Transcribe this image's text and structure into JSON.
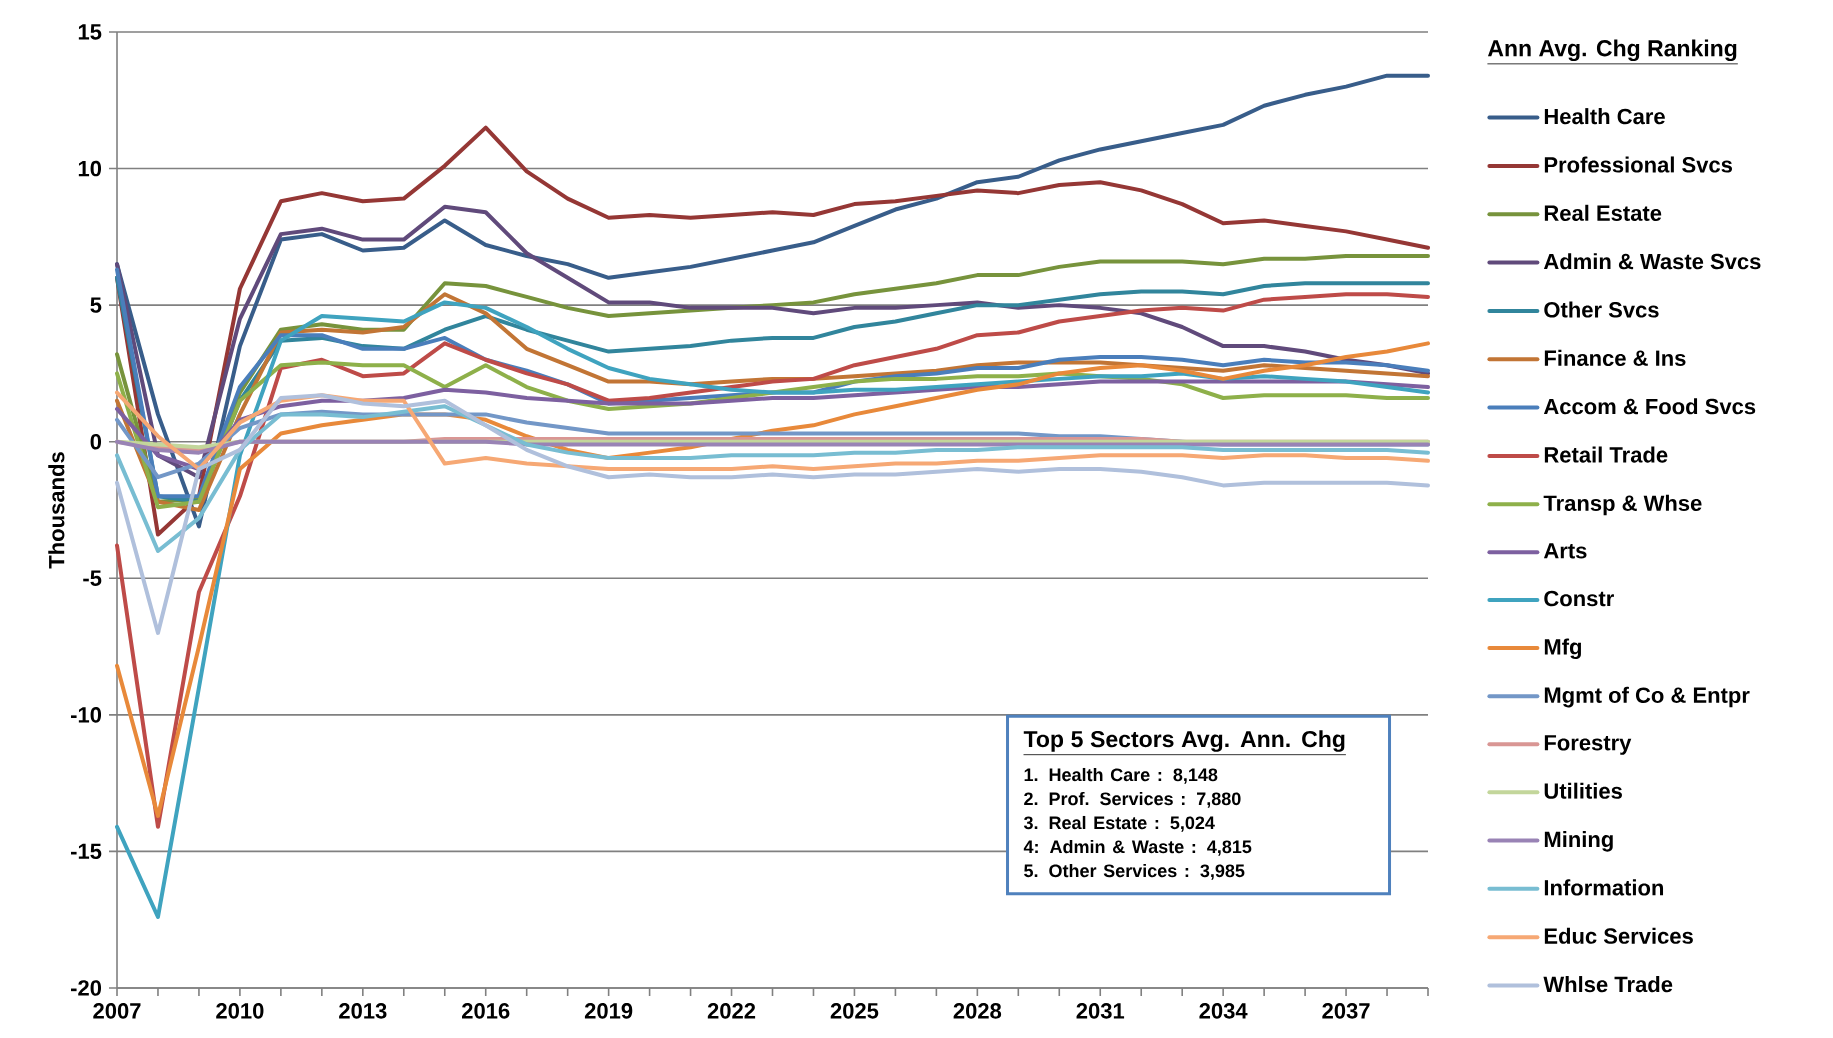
{
  "chart_data": {
    "type": "line",
    "ylabel": "Thousands",
    "legend_title": "Ann Avg. Chg Ranking",
    "legend": "right",
    "grid": "y",
    "marker": "none",
    "line_style": "solid",
    "xlim": [
      2007,
      2039
    ],
    "xticks": [
      2007,
      2010,
      2013,
      2016,
      2019,
      2022,
      2025,
      2028,
      2031,
      2034,
      2037
    ],
    "ylim": [
      -20,
      15
    ],
    "yticks": [
      -20,
      -15,
      -10,
      -5,
      0,
      5,
      10,
      15
    ],
    "x": [
      2007,
      2008,
      2009,
      2010,
      2011,
      2012,
      2013,
      2014,
      2015,
      2016,
      2017,
      2018,
      2019,
      2020,
      2021,
      2022,
      2023,
      2024,
      2025,
      2026,
      2027,
      2028,
      2029,
      2030,
      2031,
      2032,
      2033,
      2034,
      2035,
      2036,
      2037,
      2038,
      2039
    ],
    "series": [
      {
        "name": "Health Care",
        "color": "#385d8a",
        "values": [
          6.5,
          1.0,
          -3.1,
          3.5,
          7.4,
          7.6,
          7.0,
          7.1,
          8.1,
          7.2,
          6.8,
          6.5,
          6.0,
          6.2,
          6.4,
          6.7,
          7.0,
          7.3,
          7.9,
          8.5,
          8.9,
          9.5,
          9.7,
          10.3,
          10.7,
          11.0,
          11.3,
          11.6,
          12.3,
          12.7,
          13.0,
          13.4,
          13.4
        ]
      },
      {
        "name": "Professional Svcs",
        "color": "#953735",
        "values": [
          6.0,
          -3.4,
          -2.0,
          5.6,
          8.8,
          9.1,
          8.8,
          8.9,
          10.1,
          11.5,
          9.9,
          8.9,
          8.2,
          8.3,
          8.2,
          8.3,
          8.4,
          8.3,
          8.7,
          8.8,
          9.0,
          9.2,
          9.1,
          9.4,
          9.5,
          9.2,
          8.7,
          8.0,
          8.1,
          7.9,
          7.7,
          7.4,
          7.1
        ]
      },
      {
        "name": "Real Estate",
        "color": "#77933c",
        "values": [
          3.2,
          -2.2,
          -2.1,
          1.8,
          4.1,
          4.3,
          4.1,
          4.1,
          5.8,
          5.7,
          5.3,
          4.9,
          4.6,
          4.7,
          4.8,
          4.9,
          5.0,
          5.1,
          5.4,
          5.6,
          5.8,
          6.1,
          6.1,
          6.4,
          6.6,
          6.6,
          6.6,
          6.5,
          6.7,
          6.7,
          6.8,
          6.8,
          6.8
        ]
      },
      {
        "name": "Admin & Waste Svcs",
        "color": "#604a7b",
        "values": [
          6.5,
          -0.5,
          -1.3,
          4.5,
          7.6,
          7.8,
          7.4,
          7.4,
          8.6,
          8.4,
          6.9,
          6.0,
          5.1,
          5.1,
          4.9,
          4.9,
          4.9,
          4.7,
          4.9,
          4.9,
          5.0,
          5.1,
          4.9,
          5.0,
          4.9,
          4.7,
          4.2,
          3.5,
          3.5,
          3.3,
          3.0,
          2.8,
          2.5
        ]
      },
      {
        "name": "Other Svcs",
        "color": "#31859c",
        "values": [
          6.0,
          -2.0,
          -2.2,
          1.5,
          3.7,
          3.8,
          3.5,
          3.4,
          4.1,
          4.6,
          4.1,
          3.7,
          3.3,
          3.4,
          3.5,
          3.7,
          3.8,
          3.8,
          4.2,
          4.4,
          4.7,
          5.0,
          5.0,
          5.2,
          5.4,
          5.5,
          5.5,
          5.4,
          5.7,
          5.8,
          5.8,
          5.8,
          5.8
        ]
      },
      {
        "name": "Finance & Ins",
        "color": "#c27535",
        "values": [
          1.5,
          -2.2,
          -2.5,
          1.0,
          4.0,
          4.1,
          4.0,
          4.2,
          5.4,
          4.7,
          3.4,
          2.8,
          2.2,
          2.2,
          2.1,
          2.2,
          2.3,
          2.3,
          2.4,
          2.5,
          2.6,
          2.8,
          2.9,
          2.9,
          2.9,
          2.8,
          2.7,
          2.6,
          2.8,
          2.7,
          2.6,
          2.5,
          2.4
        ]
      },
      {
        "name": "Accom & Food Svcs",
        "color": "#4a7ebb",
        "values": [
          6.3,
          -2.0,
          -2.0,
          2.0,
          3.9,
          3.9,
          3.4,
          3.4,
          3.8,
          3.0,
          2.6,
          2.1,
          1.4,
          1.5,
          1.6,
          1.7,
          1.8,
          1.8,
          2.2,
          2.4,
          2.5,
          2.7,
          2.7,
          3.0,
          3.1,
          3.1,
          3.0,
          2.8,
          3.0,
          2.9,
          2.9,
          2.8,
          2.6
        ]
      },
      {
        "name": "Retail Trade",
        "color": "#be4b48",
        "values": [
          -3.8,
          -14.1,
          -5.5,
          -2.0,
          2.7,
          3.0,
          2.4,
          2.5,
          3.6,
          3.0,
          2.5,
          2.1,
          1.5,
          1.6,
          1.8,
          2.0,
          2.2,
          2.3,
          2.8,
          3.1,
          3.4,
          3.9,
          4.0,
          4.4,
          4.6,
          4.8,
          4.9,
          4.8,
          5.2,
          5.3,
          5.4,
          5.4,
          5.3
        ]
      },
      {
        "name": "Transp & Whse",
        "color": "#8eb04a",
        "values": [
          2.5,
          -2.4,
          -2.2,
          1.5,
          2.8,
          2.9,
          2.8,
          2.8,
          2.0,
          2.8,
          2.0,
          1.5,
          1.2,
          1.3,
          1.4,
          1.6,
          1.8,
          2.0,
          2.2,
          2.3,
          2.3,
          2.4,
          2.4,
          2.5,
          2.4,
          2.3,
          2.1,
          1.6,
          1.7,
          1.7,
          1.7,
          1.6,
          1.6
        ]
      },
      {
        "name": "Arts",
        "color": "#7d60a0",
        "values": [
          1.2,
          -0.5,
          -1.0,
          0.8,
          1.3,
          1.5,
          1.5,
          1.6,
          1.9,
          1.8,
          1.6,
          1.5,
          1.4,
          1.4,
          1.4,
          1.5,
          1.6,
          1.6,
          1.7,
          1.8,
          1.9,
          2.0,
          2.0,
          2.1,
          2.2,
          2.2,
          2.2,
          2.2,
          2.2,
          2.2,
          2.2,
          2.1,
          2.0
        ]
      },
      {
        "name": "Constr",
        "color": "#3fa3bf",
        "values": [
          -14.1,
          -17.4,
          -9.0,
          -0.5,
          3.7,
          4.6,
          4.5,
          4.4,
          5.1,
          4.9,
          4.2,
          3.4,
          2.7,
          2.3,
          2.1,
          1.9,
          1.8,
          1.8,
          1.9,
          1.9,
          2.0,
          2.1,
          2.2,
          2.3,
          2.4,
          2.4,
          2.5,
          2.3,
          2.4,
          2.3,
          2.2,
          2.0,
          1.8
        ]
      },
      {
        "name": "Mfg",
        "color": "#e8893a",
        "values": [
          -8.2,
          -13.7,
          -7.5,
          -1.0,
          0.3,
          0.6,
          0.8,
          1.0,
          1.0,
          0.8,
          0.2,
          -0.3,
          -0.6,
          -0.4,
          -0.2,
          0.1,
          0.4,
          0.6,
          1.0,
          1.3,
          1.6,
          1.9,
          2.1,
          2.5,
          2.7,
          2.8,
          2.6,
          2.3,
          2.6,
          2.8,
          3.1,
          3.3,
          3.6
        ]
      },
      {
        "name": "Mgmt of Co & Entpr",
        "color": "#7397c7",
        "values": [
          0.8,
          -1.3,
          -0.8,
          0.5,
          1.0,
          1.1,
          1.0,
          1.0,
          1.0,
          1.0,
          0.7,
          0.5,
          0.3,
          0.3,
          0.3,
          0.3,
          0.3,
          0.3,
          0.3,
          0.3,
          0.3,
          0.3,
          0.3,
          0.2,
          0.2,
          0.1,
          0.0,
          -0.1,
          -0.1,
          -0.1,
          -0.1,
          -0.1,
          -0.1
        ]
      },
      {
        "name": "Forestry",
        "color": "#d99694",
        "values": [
          0.0,
          -0.2,
          -0.3,
          0.0,
          0.0,
          0.0,
          0.0,
          0.0,
          0.1,
          0.1,
          0.1,
          0.1,
          0.1,
          0.1,
          0.1,
          0.1,
          0.1,
          0.1,
          0.1,
          0.1,
          0.1,
          0.1,
          0.1,
          0.1,
          0.1,
          0.1,
          0.0,
          0.0,
          0.0,
          0.0,
          0.0,
          0.0,
          0.0
        ]
      },
      {
        "name": "Utilities",
        "color": "#c3d69b",
        "values": [
          0.0,
          -0.1,
          -0.2,
          0.0,
          0.0,
          0.0,
          0.0,
          0.0,
          0.0,
          0.0,
          0.0,
          0.0,
          0.0,
          0.0,
          0.0,
          0.0,
          0.0,
          0.0,
          0.0,
          0.0,
          0.0,
          0.0,
          0.0,
          0.0,
          0.0,
          0.0,
          0.0,
          0.0,
          0.0,
          0.0,
          0.0,
          0.0,
          0.0
        ]
      },
      {
        "name": "Mining",
        "color": "#9983b5",
        "values": [
          0.0,
          -0.3,
          -0.4,
          0.0,
          0.0,
          0.0,
          0.0,
          0.0,
          0.0,
          0.0,
          -0.1,
          -0.1,
          -0.1,
          -0.1,
          -0.1,
          -0.1,
          -0.1,
          -0.1,
          -0.1,
          -0.1,
          -0.1,
          -0.1,
          -0.1,
          -0.1,
          -0.1,
          -0.1,
          -0.1,
          -0.1,
          -0.1,
          -0.1,
          -0.1,
          -0.1,
          -0.1
        ]
      },
      {
        "name": "Information",
        "color": "#78bdd2",
        "values": [
          -0.5,
          -4.0,
          -2.8,
          -0.3,
          1.0,
          1.0,
          0.9,
          1.1,
          1.3,
          0.6,
          -0.1,
          -0.4,
          -0.6,
          -0.6,
          -0.6,
          -0.5,
          -0.5,
          -0.5,
          -0.4,
          -0.4,
          -0.3,
          -0.3,
          -0.2,
          -0.2,
          -0.2,
          -0.2,
          -0.2,
          -0.3,
          -0.3,
          -0.3,
          -0.3,
          -0.3,
          -0.4
        ]
      },
      {
        "name": "Educ Services",
        "color": "#f6a874",
        "values": [
          1.8,
          0.2,
          -1.0,
          0.7,
          1.5,
          1.7,
          1.5,
          1.5,
          -0.8,
          -0.6,
          -0.8,
          -0.9,
          -1.0,
          -1.0,
          -1.0,
          -1.0,
          -0.9,
          -1.0,
          -0.9,
          -0.8,
          -0.8,
          -0.7,
          -0.7,
          -0.6,
          -0.5,
          -0.5,
          -0.5,
          -0.6,
          -0.5,
          -0.5,
          -0.6,
          -0.6,
          -0.7
        ]
      },
      {
        "name": "Whlse Trade",
        "color": "#b0c0dc",
        "values": [
          -1.5,
          -7.0,
          -1.0,
          -0.3,
          1.6,
          1.7,
          1.4,
          1.3,
          1.5,
          0.6,
          -0.3,
          -0.9,
          -1.3,
          -1.2,
          -1.3,
          -1.3,
          -1.2,
          -1.3,
          -1.2,
          -1.2,
          -1.1,
          -1.0,
          -1.1,
          -1.0,
          -1.0,
          -1.1,
          -1.3,
          -1.6,
          -1.5,
          -1.5,
          -1.5,
          -1.5,
          -1.6
        ]
      }
    ],
    "annotations": [
      "Top 5 Sectors Avg. Ann. Chg",
      "1. Health Care : 8,148",
      "2. Prof. Services : 7,880",
      "3. Real Estate : 5,024",
      "4: Admin & Waste : 4,815",
      "5. Other Services : 3,985"
    ]
  }
}
